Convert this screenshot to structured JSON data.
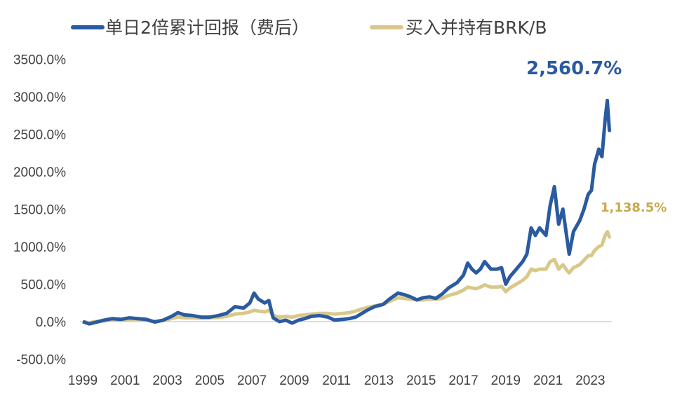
{
  "colors": {
    "series_blue": "#2a5aa0",
    "series_gold": "#d9c889",
    "end_label_gold": "#c8aa4a",
    "axis": "#d0d0d0",
    "text": "#404040"
  },
  "chart_data": {
    "type": "line",
    "title": "",
    "xlabel": "",
    "ylabel": "",
    "xlim": [
      1999,
      2023.95
    ],
    "ylim": [
      -500,
      3500
    ],
    "grid": false,
    "legend_position": "top",
    "x_ticks": [
      "1999",
      "2001",
      "2003",
      "2005",
      "2007",
      "2009",
      "2011",
      "2013",
      "2015",
      "2017",
      "2019",
      "2021",
      "2023"
    ],
    "y_ticks": [
      "3500.0%",
      "3000.0%",
      "2500.0%",
      "2000.0%",
      "1500.0%",
      "1000.0%",
      "500.0%",
      "0.0%",
      "-500.0%"
    ],
    "end_labels": {
      "blue": "2,560.7%",
      "gold": "1,138.5%"
    },
    "series": [
      {
        "name": "单日2倍累计回报（费后）",
        "points": [
          [
            1999.0,
            0
          ],
          [
            1999.3,
            -30
          ],
          [
            1999.6,
            -10
          ],
          [
            2000.0,
            20
          ],
          [
            2000.4,
            40
          ],
          [
            2000.8,
            30
          ],
          [
            2001.2,
            50
          ],
          [
            2001.6,
            40
          ],
          [
            2002.0,
            30
          ],
          [
            2002.4,
            -5
          ],
          [
            2002.8,
            20
          ],
          [
            2003.2,
            70
          ],
          [
            2003.5,
            120
          ],
          [
            2003.8,
            90
          ],
          [
            2004.2,
            80
          ],
          [
            2004.6,
            60
          ],
          [
            2005.0,
            60
          ],
          [
            2005.4,
            80
          ],
          [
            2005.8,
            110
          ],
          [
            2006.2,
            200
          ],
          [
            2006.6,
            180
          ],
          [
            2006.9,
            250
          ],
          [
            2007.1,
            380
          ],
          [
            2007.3,
            300
          ],
          [
            2007.6,
            250
          ],
          [
            2007.8,
            280
          ],
          [
            2008.0,
            50
          ],
          [
            2008.3,
            0
          ],
          [
            2008.6,
            20
          ],
          [
            2008.9,
            -20
          ],
          [
            2009.2,
            20
          ],
          [
            2009.5,
            40
          ],
          [
            2009.8,
            70
          ],
          [
            2010.2,
            80
          ],
          [
            2010.6,
            60
          ],
          [
            2010.9,
            20
          ],
          [
            2011.3,
            30
          ],
          [
            2011.6,
            40
          ],
          [
            2011.9,
            60
          ],
          [
            2012.2,
            110
          ],
          [
            2012.5,
            160
          ],
          [
            2012.8,
            200
          ],
          [
            2013.2,
            230
          ],
          [
            2013.5,
            300
          ],
          [
            2013.9,
            380
          ],
          [
            2014.2,
            360
          ],
          [
            2014.5,
            330
          ],
          [
            2014.8,
            290
          ],
          [
            2015.1,
            320
          ],
          [
            2015.4,
            330
          ],
          [
            2015.7,
            310
          ],
          [
            2016.0,
            370
          ],
          [
            2016.3,
            450
          ],
          [
            2016.7,
            520
          ],
          [
            2017.0,
            620
          ],
          [
            2017.2,
            780
          ],
          [
            2017.4,
            700
          ],
          [
            2017.6,
            650
          ],
          [
            2017.8,
            700
          ],
          [
            2018.0,
            800
          ],
          [
            2018.3,
            700
          ],
          [
            2018.6,
            700
          ],
          [
            2018.8,
            720
          ],
          [
            2019.0,
            500
          ],
          [
            2019.2,
            600
          ],
          [
            2019.5,
            700
          ],
          [
            2019.8,
            800
          ],
          [
            2020.0,
            900
          ],
          [
            2020.2,
            1250
          ],
          [
            2020.4,
            1150
          ],
          [
            2020.6,
            1250
          ],
          [
            2020.9,
            1150
          ],
          [
            2021.1,
            1550
          ],
          [
            2021.3,
            1800
          ],
          [
            2021.5,
            1300
          ],
          [
            2021.7,
            1500
          ],
          [
            2021.9,
            1100
          ],
          [
            2022.0,
            900
          ],
          [
            2022.2,
            1200
          ],
          [
            2022.5,
            1350
          ],
          [
            2022.7,
            1500
          ],
          [
            2022.9,
            1700
          ],
          [
            2023.05,
            1750
          ],
          [
            2023.2,
            2100
          ],
          [
            2023.4,
            2300
          ],
          [
            2023.55,
            2200
          ],
          [
            2023.7,
            2700
          ],
          [
            2023.8,
            2950
          ],
          [
            2023.9,
            2550
          ],
          [
            2023.95,
            2560.7
          ]
        ]
      },
      {
        "name": "买入并持有BRK/B",
        "points": [
          [
            1999.0,
            0
          ],
          [
            1999.3,
            -15
          ],
          [
            1999.6,
            0
          ],
          [
            2000.0,
            10
          ],
          [
            2000.4,
            20
          ],
          [
            2000.8,
            20
          ],
          [
            2001.2,
            30
          ],
          [
            2001.6,
            30
          ],
          [
            2002.0,
            20
          ],
          [
            2002.4,
            0
          ],
          [
            2002.8,
            15
          ],
          [
            2003.2,
            40
          ],
          [
            2003.5,
            60
          ],
          [
            2003.8,
            50
          ],
          [
            2004.2,
            50
          ],
          [
            2004.6,
            45
          ],
          [
            2005.0,
            50
          ],
          [
            2005.4,
            55
          ],
          [
            2005.8,
            70
          ],
          [
            2006.2,
            100
          ],
          [
            2006.6,
            110
          ],
          [
            2006.9,
            130
          ],
          [
            2007.1,
            150
          ],
          [
            2007.3,
            140
          ],
          [
            2007.6,
            130
          ],
          [
            2007.8,
            150
          ],
          [
            2008.0,
            80
          ],
          [
            2008.3,
            60
          ],
          [
            2008.6,
            70
          ],
          [
            2008.9,
            60
          ],
          [
            2009.2,
            80
          ],
          [
            2009.5,
            90
          ],
          [
            2009.8,
            100
          ],
          [
            2010.2,
            110
          ],
          [
            2010.6,
            110
          ],
          [
            2010.9,
            100
          ],
          [
            2011.3,
            110
          ],
          [
            2011.6,
            120
          ],
          [
            2011.9,
            140
          ],
          [
            2012.2,
            170
          ],
          [
            2012.5,
            190
          ],
          [
            2012.8,
            210
          ],
          [
            2013.2,
            230
          ],
          [
            2013.5,
            270
          ],
          [
            2013.9,
            320
          ],
          [
            2014.2,
            310
          ],
          [
            2014.5,
            300
          ],
          [
            2014.8,
            290
          ],
          [
            2015.1,
            290
          ],
          [
            2015.4,
            300
          ],
          [
            2015.7,
            300
          ],
          [
            2016.0,
            310
          ],
          [
            2016.3,
            350
          ],
          [
            2016.7,
            380
          ],
          [
            2017.0,
            420
          ],
          [
            2017.2,
            460
          ],
          [
            2017.4,
            450
          ],
          [
            2017.6,
            440
          ],
          [
            2017.8,
            460
          ],
          [
            2018.0,
            490
          ],
          [
            2018.3,
            460
          ],
          [
            2018.6,
            460
          ],
          [
            2018.8,
            470
          ],
          [
            2019.0,
            400
          ],
          [
            2019.2,
            450
          ],
          [
            2019.5,
            500
          ],
          [
            2019.8,
            550
          ],
          [
            2020.0,
            600
          ],
          [
            2020.2,
            700
          ],
          [
            2020.4,
            680
          ],
          [
            2020.6,
            700
          ],
          [
            2020.9,
            700
          ],
          [
            2021.1,
            800
          ],
          [
            2021.3,
            830
          ],
          [
            2021.5,
            700
          ],
          [
            2021.7,
            760
          ],
          [
            2021.9,
            680
          ],
          [
            2022.0,
            650
          ],
          [
            2022.2,
            720
          ],
          [
            2022.5,
            760
          ],
          [
            2022.7,
            820
          ],
          [
            2022.9,
            880
          ],
          [
            2023.05,
            880
          ],
          [
            2023.2,
            950
          ],
          [
            2023.4,
            1000
          ],
          [
            2023.55,
            1020
          ],
          [
            2023.7,
            1150
          ],
          [
            2023.8,
            1200
          ],
          [
            2023.9,
            1130
          ],
          [
            2023.95,
            1138.5
          ]
        ]
      }
    ]
  }
}
